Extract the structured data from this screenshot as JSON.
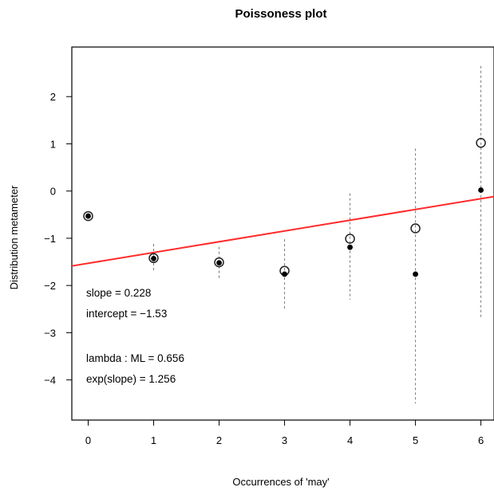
{
  "chart_data": {
    "type": "scatter",
    "title": "Poissoness plot",
    "xlabel": "Occurrences of 'may'",
    "ylabel": "Distribution metameter",
    "xlim": [
      -0.25,
      6.2
    ],
    "ylim": [
      -4.85,
      3.05
    ],
    "xticks": [
      "0",
      "1",
      "2",
      "3",
      "4",
      "5",
      "6"
    ],
    "yticks": [
      "2",
      "1",
      "0",
      "−1",
      "−2",
      "−3",
      "−4"
    ],
    "ytick_values": [
      2,
      1,
      0,
      -1,
      -2,
      -3,
      -4
    ],
    "grid": false,
    "x": [
      0,
      1,
      2,
      3,
      4,
      5,
      6
    ],
    "series": [
      {
        "marker": "open-circle",
        "values": [
          -0.53,
          -1.42,
          -1.51,
          -1.69,
          -1.01,
          -0.79,
          1.02
        ]
      },
      {
        "marker": "filled-dot",
        "values": [
          -0.53,
          -1.43,
          -1.52,
          -1.76,
          -1.19,
          -1.76,
          0.02
        ]
      }
    ],
    "intervals": [
      {
        "x": 0,
        "low": -0.53,
        "high": -0.53
      },
      {
        "x": 1,
        "low": -1.72,
        "high": -1.12
      },
      {
        "x": 2,
        "low": -1.86,
        "high": -1.18
      },
      {
        "x": 3,
        "low": -2.53,
        "high": -1.02
      },
      {
        "x": 4,
        "low": -2.3,
        "high": -0.05
      },
      {
        "x": 5,
        "low": -4.5,
        "high": 0.9
      },
      {
        "x": 6,
        "low": -2.7,
        "high": 2.65
      }
    ],
    "fit_line": {
      "slope": 0.228,
      "intercept": -1.53,
      "color": "#ff2a2a"
    },
    "annotations": {
      "slope": "slope = 0.228",
      "intercept": "intercept = −1.53",
      "lambda": "lambda : ML = 0.656",
      "exp_slope": "exp(slope) = 1.256"
    }
  }
}
